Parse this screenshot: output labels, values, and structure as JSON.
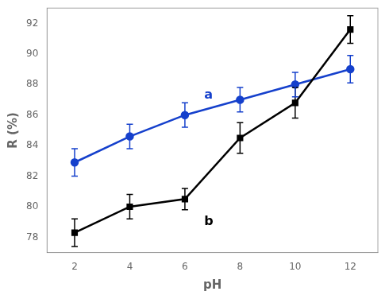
{
  "chart_data": {
    "type": "line",
    "xlabel": "pH",
    "ylabel": "R (%)",
    "x": [
      2,
      4,
      6,
      8,
      10,
      12
    ],
    "series": [
      {
        "color": "#000000",
        "marker": "square",
        "values": [
          78.3,
          80.0,
          80.5,
          84.5,
          86.8,
          91.6
        ],
        "errors": [
          0.9,
          0.8,
          0.7,
          1.0,
          1.0,
          0.9
        ]
      },
      {
        "color": "#1540cc",
        "marker": "circle",
        "values": [
          82.9,
          84.6,
          86.0,
          87.0,
          88.0,
          89.0
        ],
        "errors": [
          0.9,
          0.8,
          0.8,
          0.8,
          0.8,
          0.9
        ]
      }
    ],
    "annotations": [
      {
        "text": "a",
        "x": 6.7,
        "y": 87.3,
        "color": "#1540cc"
      },
      {
        "text": "b",
        "x": 6.7,
        "y": 79.0,
        "color": "#000000"
      }
    ],
    "xlim": [
      1.0,
      13.0
    ],
    "ylim": [
      77.0,
      93.0
    ],
    "xticks": [
      2,
      4,
      6,
      8,
      10,
      12
    ],
    "yticks": [
      78,
      80,
      82,
      84,
      86,
      88,
      90,
      92
    ],
    "grid": false
  }
}
